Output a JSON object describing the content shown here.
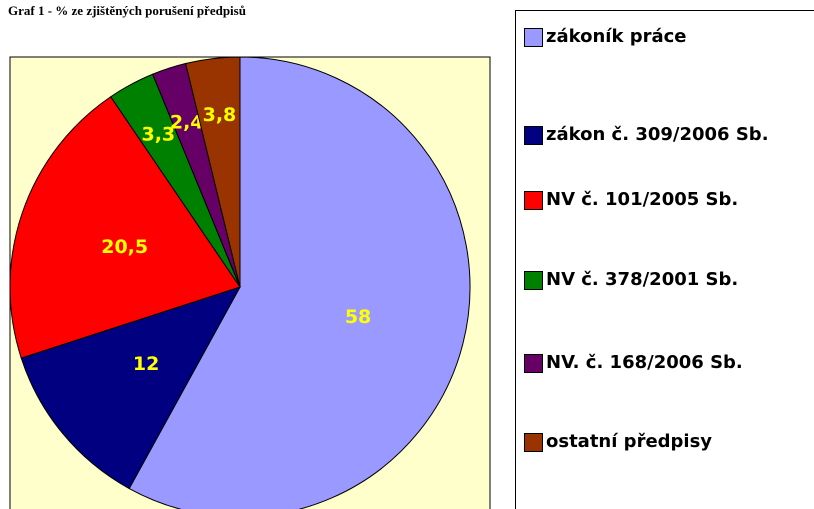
{
  "chart_data": {
    "type": "pie",
    "title": "Graf 1 - % ze zjištěných porušení předpisů",
    "categories": [
      "zákoník práce",
      "zákon č. 309/2006 Sb.",
      "NV č. 101/2005 Sb.",
      "NV č. 378/2001 Sb.",
      "NV. č. 168/2006 Sb.",
      "ostatní předpisy"
    ],
    "values": [
      58,
      12,
      20.5,
      3.3,
      2.4,
      3.8
    ],
    "value_labels": [
      "58",
      "12",
      "20,5",
      "3,3",
      "2,4",
      "3,8"
    ],
    "colors": [
      "#9999ff",
      "#000080",
      "#ff0000",
      "#008000",
      "#660066",
      "#993300"
    ],
    "legend": "right"
  }
}
